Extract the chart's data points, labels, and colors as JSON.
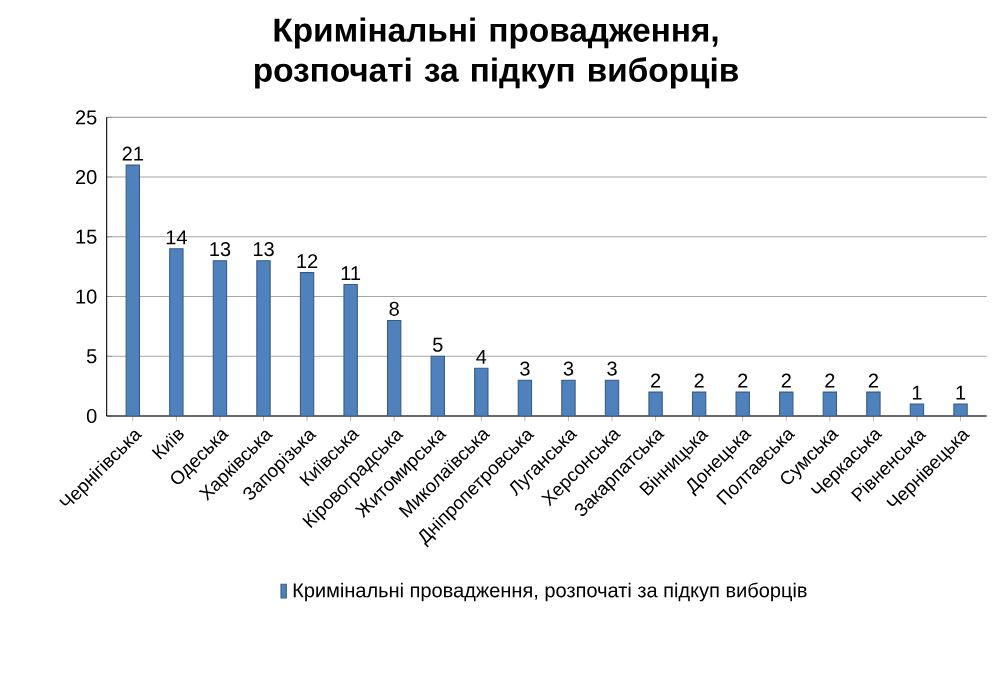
{
  "chart_data": {
    "type": "bar",
    "title": "Кримінальні провадження, розпочаті за підкуп виборців",
    "categories": [
      "Чернігівська",
      "Київ",
      "Одеська",
      "Харківська",
      "Запорізька",
      "Київська",
      "Кіровоградська",
      "Житомирська",
      "Миколаївська",
      "Дніпропетровська",
      "Луганська",
      "Херсонська",
      "Закарпатська",
      "Вінницька",
      "Донецька",
      "Полтавська",
      "Сумська",
      "Черкаська",
      "Рівненська",
      "Чернівецька"
    ],
    "series": [
      {
        "name": "Кримінальні провадження, розпочаті за підкуп виборців",
        "color": "#4f81bd",
        "values": [
          21,
          14,
          13,
          13,
          12,
          11,
          8,
          5,
          4,
          3,
          3,
          3,
          2,
          2,
          2,
          2,
          2,
          2,
          1,
          1
        ]
      }
    ],
    "ylim": [
      0,
      25
    ],
    "yticks": [
      0,
      5,
      10,
      15,
      20,
      25
    ],
    "grid": "y",
    "data_labels": true,
    "legend": "bottom"
  }
}
